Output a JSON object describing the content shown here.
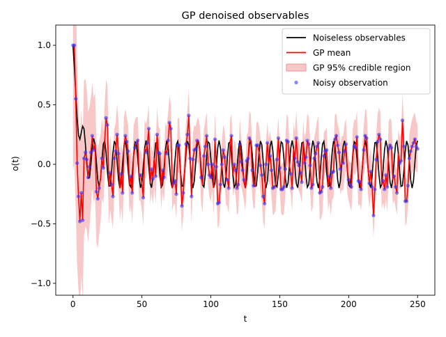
{
  "chart_data": {
    "type": "line",
    "title": "GP denoised observables",
    "xlabel": "t",
    "ylabel": "o(t)",
    "xlim": [
      -12.5,
      262.5
    ],
    "ylim": [
      -1.1,
      1.17
    ],
    "xticks": [
      0,
      50,
      100,
      150,
      200,
      250
    ],
    "xtick_labels": [
      "0",
      "50",
      "100",
      "150",
      "200",
      "250"
    ],
    "yticks": [
      -1.0,
      -0.5,
      0.0,
      0.5,
      1.0
    ],
    "ytick_labels": [
      "−1.0",
      "−0.5",
      "0.0",
      "0.5",
      "1.0"
    ],
    "grid": false,
    "legend_position": "top-right",
    "colors": {
      "noiseless": "#000000",
      "gp_mean": "#ff0000",
      "credible": "#f4a3a3",
      "noisy": "#3333ff"
    },
    "legend": [
      {
        "key": "noiseless",
        "label": "Noiseless observables",
        "kind": "line"
      },
      {
        "key": "gp_mean",
        "label": "GP mean",
        "kind": "line"
      },
      {
        "key": "credible",
        "label": "GP 95% credible region",
        "kind": "patch"
      },
      {
        "key": "noisy",
        "label": "Noisy observation",
        "kind": "marker"
      }
    ],
    "model": {
      "t_range": [
        0,
        250
      ],
      "samples": 251,
      "noiseless": "exp(-t/4) + 0.2*(1-exp(-t/4))*cos(0.83*t)",
      "noise_sd": 0.09,
      "credible_halfwidth": {
        "start": 1.0,
        "decay": 12,
        "base": 0.17
      }
    },
    "noisy_points": [
      [
        0,
        1.0
      ],
      [
        1,
        1.0
      ],
      [
        2,
        0.55
      ],
      [
        3,
        0.01
      ],
      [
        4,
        -0.27
      ],
      [
        5,
        -0.48
      ],
      [
        6,
        -0.24
      ],
      [
        7,
        -0.47
      ],
      [
        8,
        0.05
      ],
      [
        9,
        0.1
      ],
      [
        10,
        0.04
      ],
      [
        11,
        -0.11
      ],
      [
        12,
        -0.02
      ],
      [
        13,
        0.1
      ],
      [
        14,
        0.24
      ],
      [
        15,
        0.12
      ],
      [
        17,
        -0.23
      ],
      [
        18,
        -0.29
      ],
      [
        19,
        -0.2
      ],
      [
        21,
        0.05
      ],
      [
        22,
        -0.03
      ],
      [
        24,
        0.39
      ],
      [
        25,
        0.33
      ],
      [
        27,
        -0.07
      ],
      [
        28,
        -0.17
      ],
      [
        29,
        -0.27
      ],
      [
        30,
        0.05
      ],
      [
        31,
        0.11
      ],
      [
        32,
        0.25
      ],
      [
        33,
        0.09
      ],
      [
        35,
        -0.08
      ],
      [
        36,
        -0.24
      ],
      [
        38,
        0.24
      ],
      [
        39,
        0.19
      ],
      [
        40,
        0.11
      ],
      [
        42,
        -0.1
      ],
      [
        43,
        -0.24
      ],
      [
        45,
        0.14
      ],
      [
        46,
        0.18
      ],
      [
        47,
        0.2
      ],
      [
        49,
        -0.09
      ],
      [
        51,
        -0.28
      ],
      [
        53,
        0.1
      ],
      [
        54,
        0.18
      ],
      [
        55,
        0.3
      ],
      [
        57,
        -0.04
      ],
      [
        58,
        -0.12
      ],
      [
        60,
        -0.1
      ],
      [
        61,
        0.25
      ],
      [
        62,
        0.1
      ],
      [
        63,
        0.09
      ],
      [
        65,
        -0.05
      ],
      [
        66,
        -0.11
      ],
      [
        68,
        0.09
      ],
      [
        69,
        0.2
      ],
      [
        70,
        0.35
      ],
      [
        71,
        0.3
      ],
      [
        73,
        -0.16
      ],
      [
        74,
        -0.14
      ],
      [
        75,
        -0.25
      ],
      [
        76,
        0.16
      ],
      [
        77,
        0.16
      ],
      [
        79,
        -0.35
      ],
      [
        80,
        -0.24
      ],
      [
        82,
        0.17
      ],
      [
        83,
        0.25
      ],
      [
        84,
        0.41
      ],
      [
        85,
        0.05
      ],
      [
        86,
        -0.27
      ],
      [
        87,
        0.04
      ],
      [
        88,
        0.12
      ],
      [
        89,
        0.13
      ],
      [
        90,
        0.2
      ],
      [
        93,
        -0.11
      ],
      [
        95,
        0.07
      ],
      [
        96,
        0.15
      ],
      [
        97,
        0.24
      ],
      [
        98,
        0.0
      ],
      [
        99,
        -0.09
      ],
      [
        100,
        -0.11
      ],
      [
        101,
        0.0
      ],
      [
        103,
        0.21
      ],
      [
        104,
        -0.02
      ],
      [
        105,
        -0.33
      ],
      [
        106,
        -0.32
      ],
      [
        107,
        -0.17
      ],
      [
        108,
        0.0
      ],
      [
        109,
        0.12
      ],
      [
        110,
        0.06
      ],
      [
        112,
        -0.13
      ],
      [
        113,
        -0.2
      ],
      [
        115,
        0.24
      ],
      [
        117,
        0.0
      ],
      [
        118,
        -0.05
      ],
      [
        119,
        -0.2
      ],
      [
        120,
        -0.17
      ],
      [
        121,
        0.17
      ],
      [
        122,
        0.02
      ],
      [
        123,
        -0.05
      ],
      [
        124,
        -0.13
      ],
      [
        126,
        0.03
      ],
      [
        127,
        0.05
      ],
      [
        128,
        0.22
      ],
      [
        130,
        -0.05
      ],
      [
        131,
        -0.18
      ],
      [
        133,
        0.16
      ],
      [
        134,
        0.16
      ],
      [
        136,
        -0.01
      ],
      [
        137,
        -0.09
      ],
      [
        138,
        -0.27
      ],
      [
        139,
        -0.33
      ],
      [
        140,
        0.0
      ],
      [
        141,
        0.18
      ],
      [
        143,
        0.07
      ],
      [
        144,
        -0.05
      ],
      [
        145,
        -0.2
      ],
      [
        146,
        -0.19
      ],
      [
        148,
        0.04
      ],
      [
        149,
        0.22
      ],
      [
        150,
        -0.03
      ],
      [
        151,
        -0.21
      ],
      [
        152,
        -0.21
      ],
      [
        153,
        -0.19
      ],
      [
        154,
        -0.04
      ],
      [
        155,
        0.2
      ],
      [
        156,
        0.19
      ],
      [
        158,
        -0.08
      ],
      [
        159,
        -0.2
      ],
      [
        161,
        0.05
      ],
      [
        162,
        0.22
      ],
      [
        163,
        0.02
      ],
      [
        164,
        -0.01
      ],
      [
        165,
        -0.07
      ],
      [
        166,
        -0.15
      ],
      [
        168,
        0.01
      ],
      [
        169,
        0.06
      ],
      [
        170,
        0.2
      ],
      [
        171,
        0.17
      ],
      [
        172,
        -0.01
      ],
      [
        173,
        -0.2
      ],
      [
        174,
        -0.17
      ],
      [
        175,
        0.05
      ],
      [
        176,
        0.09
      ],
      [
        177,
        0.15
      ],
      [
        178,
        0.18
      ],
      [
        179,
        -0.24
      ],
      [
        180,
        -0.23
      ],
      [
        181,
        -0.19
      ],
      [
        182,
        0.07
      ],
      [
        183,
        0.11
      ],
      [
        184,
        0.12
      ],
      [
        186,
        -0.1
      ],
      [
        187,
        -0.2
      ],
      [
        188,
        -0.07
      ],
      [
        189,
        -0.06
      ],
      [
        190,
        0.21
      ],
      [
        191,
        0.24
      ],
      [
        192,
        0.16
      ],
      [
        193,
        0.1
      ],
      [
        194,
        -0.04
      ],
      [
        196,
        0.01
      ],
      [
        197,
        0.11
      ],
      [
        198,
        0.17
      ],
      [
        200,
        -0.13
      ],
      [
        201,
        -0.17
      ],
      [
        202,
        -0.19
      ],
      [
        204,
        0.15
      ],
      [
        205,
        0.14
      ],
      [
        206,
        0.23
      ],
      [
        207,
        -0.14
      ],
      [
        208,
        -0.15
      ],
      [
        209,
        -0.21
      ],
      [
        211,
        0.12
      ],
      [
        212,
        0.24
      ],
      [
        213,
        0.22
      ],
      [
        215,
        -0.16
      ],
      [
        216,
        -0.06
      ],
      [
        217,
        -0.19
      ],
      [
        218,
        -0.43
      ],
      [
        219,
        -0.21
      ],
      [
        220,
        0.04
      ],
      [
        221,
        0.19
      ],
      [
        222,
        0.25
      ],
      [
        223,
        0.21
      ],
      [
        225,
        -0.14
      ],
      [
        226,
        -0.21
      ],
      [
        227,
        -0.09
      ],
      [
        228,
        -0.19
      ],
      [
        229,
        0.13
      ],
      [
        230,
        0.16
      ],
      [
        231,
        0.14
      ],
      [
        233,
        -0.1
      ],
      [
        234,
        -0.19
      ],
      [
        235,
        -0.24
      ],
      [
        237,
        0.01
      ],
      [
        238,
        0.03
      ],
      [
        239,
        0.37
      ],
      [
        240,
        0.15
      ],
      [
        241,
        -0.31
      ],
      [
        242,
        -0.31
      ],
      [
        243,
        -0.18
      ],
      [
        244,
        0.05
      ],
      [
        245,
        0.11
      ],
      [
        246,
        0.15
      ],
      [
        247,
        0.18
      ],
      [
        248,
        0.21
      ],
      [
        249,
        0.15
      ],
      [
        250,
        0.13
      ]
    ]
  }
}
